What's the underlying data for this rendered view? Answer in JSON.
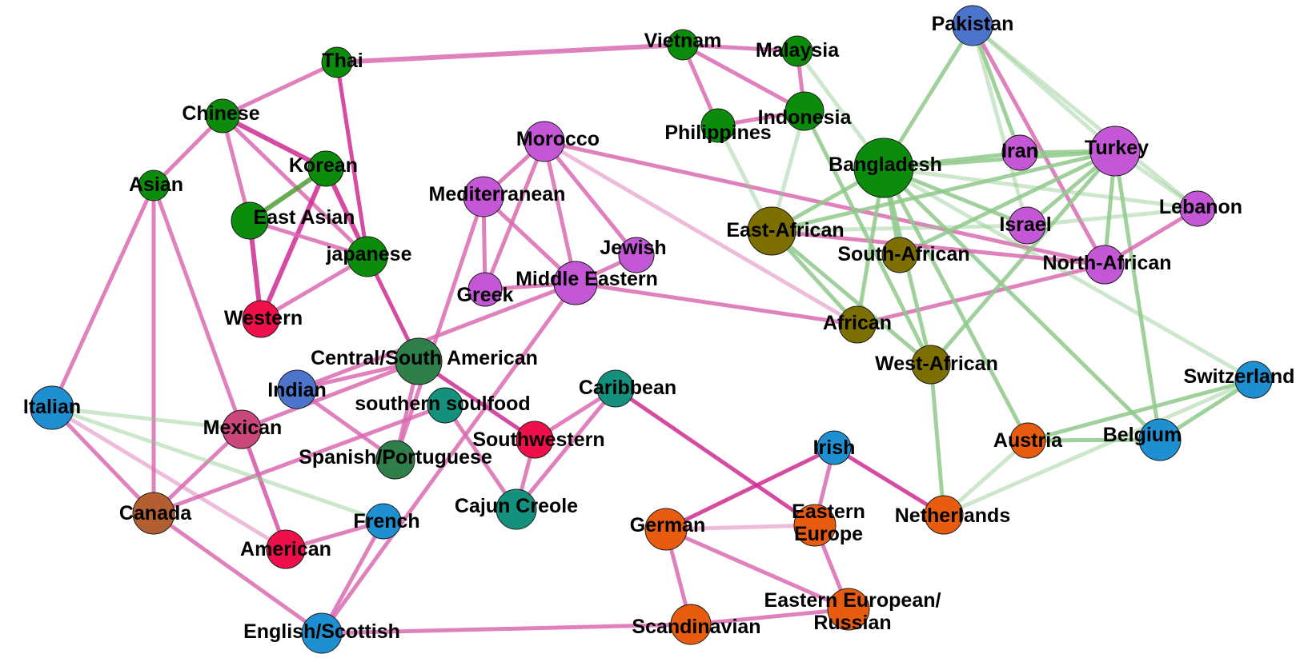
{
  "colors": {
    "pink_edge": "#d96bb0",
    "pink_strong": "#cc2b91",
    "green_edge": "#8fc98c",
    "green_strong": "#4f9e36",
    "east_asian_green": "#0b8c0b",
    "middle_eastern_purple": "#c357d6",
    "african_olive": "#7d7000",
    "latin_darkgreen": "#2e7f49",
    "caribbean_teal": "#14917d",
    "european_blue": "#1e8fd0",
    "northern_orange": "#e85c0f",
    "red": "#ef0f4a",
    "south_asian_blue": "#4d74cc",
    "canada_brown": "#b45f31",
    "mexican_rose": "#c9477b"
  },
  "nodes": [
    {
      "id": "vietnam",
      "label": "Vietnam",
      "group": "east_asian_green"
    },
    {
      "id": "malaysia",
      "label": "Malaysia",
      "group": "east_asian_green"
    },
    {
      "id": "thai",
      "label": "Thai",
      "group": "east_asian_green"
    },
    {
      "id": "chinese",
      "label": "Chinese",
      "group": "east_asian_green"
    },
    {
      "id": "indonesia",
      "label": "Indonesia",
      "group": "east_asian_green"
    },
    {
      "id": "philippines",
      "label": "Philippines",
      "group": "east_asian_green"
    },
    {
      "id": "korean",
      "label": "Korean",
      "group": "east_asian_green"
    },
    {
      "id": "asian",
      "label": "Asian",
      "group": "east_asian_green"
    },
    {
      "id": "east_asian",
      "label": "East Asian",
      "group": "east_asian_green"
    },
    {
      "id": "japanese",
      "label": "japanese",
      "group": "east_asian_green"
    },
    {
      "id": "bangladesh",
      "label": "Bangladesh",
      "group": "east_asian_green"
    },
    {
      "id": "pakistan",
      "label": "Pakistan",
      "group": "south_asian_blue"
    },
    {
      "id": "indian",
      "label": "Indian",
      "group": "south_asian_blue"
    },
    {
      "id": "morocco",
      "label": "Morocco",
      "group": "middle_eastern_purple"
    },
    {
      "id": "mediterranean",
      "label": "Mediterranean",
      "group": "middle_eastern_purple"
    },
    {
      "id": "jewish",
      "label": "Jewish",
      "group": "middle_eastern_purple"
    },
    {
      "id": "greek",
      "label": "Greek",
      "group": "middle_eastern_purple"
    },
    {
      "id": "middle_eastern",
      "label": "Middle Eastern",
      "group": "middle_eastern_purple"
    },
    {
      "id": "iran",
      "label": "Iran",
      "group": "middle_eastern_purple"
    },
    {
      "id": "turkey",
      "label": "Turkey",
      "group": "middle_eastern_purple"
    },
    {
      "id": "lebanon",
      "label": "Lebanon",
      "group": "middle_eastern_purple"
    },
    {
      "id": "israel",
      "label": "Israel",
      "group": "middle_eastern_purple"
    },
    {
      "id": "north_african",
      "label": "North-African",
      "group": "middle_eastern_purple"
    },
    {
      "id": "east_african",
      "label": "East-African",
      "group": "african_olive"
    },
    {
      "id": "south_african",
      "label": "South-African",
      "group": "african_olive"
    },
    {
      "id": "african",
      "label": "African",
      "group": "african_olive"
    },
    {
      "id": "west_african",
      "label": "West-African",
      "group": "african_olive"
    },
    {
      "id": "western",
      "label": "Western",
      "group": "red"
    },
    {
      "id": "southwestern",
      "label": "Southwestern",
      "group": "red"
    },
    {
      "id": "american",
      "label": "American",
      "group": "red"
    },
    {
      "id": "central_south_american",
      "label": "Central/South American",
      "group": "latin_darkgreen"
    },
    {
      "id": "spanish_portuguese",
      "label": "Spanish/Portuguese",
      "group": "latin_darkgreen"
    },
    {
      "id": "southern_soulfood",
      "label": "southern soulfood",
      "group": "caribbean_teal"
    },
    {
      "id": "caribbean",
      "label": "Caribbean",
      "group": "caribbean_teal"
    },
    {
      "id": "cajun_creole",
      "label": "Cajun Creole",
      "group": "caribbean_teal"
    },
    {
      "id": "mexican",
      "label": "Mexican",
      "group": "mexican_rose"
    },
    {
      "id": "canada",
      "label": "Canada",
      "group": "canada_brown"
    },
    {
      "id": "italian",
      "label": "Italian",
      "group": "european_blue"
    },
    {
      "id": "french",
      "label": "French",
      "group": "european_blue"
    },
    {
      "id": "english_scottish",
      "label": "English/Scottish",
      "group": "european_blue"
    },
    {
      "id": "irish",
      "label": "Irish",
      "group": "european_blue"
    },
    {
      "id": "switzerland",
      "label": "Switzerland",
      "group": "european_blue"
    },
    {
      "id": "belgium",
      "label": "Belgium",
      "group": "european_blue"
    },
    {
      "id": "austria",
      "label": "Austria",
      "group": "northern_orange"
    },
    {
      "id": "netherlands",
      "label": "Netherlands",
      "group": "northern_orange"
    },
    {
      "id": "german",
      "label": "German",
      "group": "northern_orange"
    },
    {
      "id": "eastern_europe",
      "label": "Eastern\nEurope",
      "group": "northern_orange"
    },
    {
      "id": "scandinavian",
      "label": "Scandinavian",
      "group": "northern_orange"
    },
    {
      "id": "eastern_european_russian",
      "label": "Eastern European/\nRussian",
      "group": "northern_orange"
    }
  ],
  "edges": [
    {
      "source": "thai",
      "target": "vietnam",
      "color": "pink_edge",
      "weight": 3
    },
    {
      "source": "vietnam",
      "target": "malaysia",
      "color": "pink_edge",
      "weight": 2
    },
    {
      "source": "vietnam",
      "target": "philippines",
      "color": "pink_edge",
      "weight": 2
    },
    {
      "source": "vietnam",
      "target": "indonesia",
      "color": "pink_edge",
      "weight": 2
    },
    {
      "source": "malaysia",
      "target": "indonesia",
      "color": "pink_edge",
      "weight": 2
    },
    {
      "source": "philippines",
      "target": "indonesia",
      "color": "pink_edge",
      "weight": 2
    },
    {
      "source": "thai",
      "target": "chinese",
      "color": "pink_edge",
      "weight": 2
    },
    {
      "source": "thai",
      "target": "japanese",
      "color": "pink_strong",
      "weight": 2
    },
    {
      "source": "chinese",
      "target": "asian",
      "color": "pink_edge",
      "weight": 2
    },
    {
      "source": "chinese",
      "target": "korean",
      "color": "pink_strong",
      "weight": 3
    },
    {
      "source": "chinese",
      "target": "japanese",
      "color": "pink_edge",
      "weight": 2
    },
    {
      "source": "chinese",
      "target": "east_asian",
      "color": "pink_edge",
      "weight": 2
    },
    {
      "source": "korean",
      "target": "japanese",
      "color": "pink_strong",
      "weight": 3
    },
    {
      "source": "korean",
      "target": "east_asian",
      "color": "green_strong",
      "weight": 3
    },
    {
      "source": "korean",
      "target": "western",
      "color": "pink_strong",
      "weight": 3
    },
    {
      "source": "east_asian",
      "target": "japanese",
      "color": "pink_edge",
      "weight": 2
    },
    {
      "source": "east_asian",
      "target": "western",
      "color": "pink_strong",
      "weight": 3
    },
    {
      "source": "japanese",
      "target": "western",
      "color": "pink_edge",
      "weight": 2
    },
    {
      "source": "japanese",
      "target": "central_south_american",
      "color": "pink_strong",
      "weight": 2
    },
    {
      "source": "asian",
      "target": "italian",
      "color": "pink_edge",
      "weight": 2
    },
    {
      "source": "asian",
      "target": "canada",
      "color": "pink_edge",
      "weight": 2
    },
    {
      "source": "asian",
      "target": "american",
      "color": "pink_edge",
      "weight": 2
    },
    {
      "source": "morocco",
      "target": "mediterranean",
      "color": "pink_edge",
      "weight": 2
    },
    {
      "source": "morocco",
      "target": "greek",
      "color": "pink_edge",
      "weight": 2
    },
    {
      "source": "morocco",
      "target": "jewish",
      "color": "pink_edge",
      "weight": 2
    },
    {
      "source": "morocco",
      "target": "middle_eastern",
      "color": "pink_edge",
      "weight": 2
    },
    {
      "source": "morocco",
      "target": "north_african",
      "color": "pink_edge",
      "weight": 2
    },
    {
      "source": "morocco",
      "target": "african",
      "color": "pink_edge",
      "weight": 1
    },
    {
      "source": "mediterranean",
      "target": "greek",
      "color": "pink_edge",
      "weight": 2
    },
    {
      "source": "mediterranean",
      "target": "middle_eastern",
      "color": "pink_edge",
      "weight": 2
    },
    {
      "source": "mediterranean",
      "target": "spanish_portuguese",
      "color": "pink_edge",
      "weight": 2
    },
    {
      "source": "middle_eastern",
      "target": "greek",
      "color": "pink_edge",
      "weight": 2
    },
    {
      "source": "middle_eastern",
      "target": "jewish",
      "color": "pink_edge",
      "weight": 2
    },
    {
      "source": "middle_eastern",
      "target": "african",
      "color": "pink_edge",
      "weight": 2
    },
    {
      "source": "middle_eastern",
      "target": "indian",
      "color": "pink_edge",
      "weight": 2
    },
    {
      "source": "middle_eastern",
      "target": "english_scottish",
      "color": "pink_edge",
      "weight": 2
    },
    {
      "source": "african",
      "target": "north_african",
      "color": "pink_edge",
      "weight": 2
    },
    {
      "source": "central_south_american",
      "target": "indian",
      "color": "pink_edge",
      "weight": 2
    },
    {
      "source": "central_south_american",
      "target": "southwestern",
      "color": "pink_strong",
      "weight": 2
    },
    {
      "source": "central_south_american",
      "target": "spanish_portuguese",
      "color": "pink_edge",
      "weight": 2
    },
    {
      "source": "central_south_american",
      "target": "mexican",
      "color": "pink_edge",
      "weight": 2
    },
    {
      "source": "indian",
      "target": "spanish_portuguese",
      "color": "pink_edge",
      "weight": 2
    },
    {
      "source": "southern_soulfood",
      "target": "cajun_creole",
      "color": "pink_edge",
      "weight": 2
    },
    {
      "source": "southern_soulfood",
      "target": "canada",
      "color": "pink_edge",
      "weight": 2
    },
    {
      "source": "caribbean",
      "target": "southwestern",
      "color": "pink_edge",
      "weight": 2
    },
    {
      "source": "caribbean",
      "target": "cajun_creole",
      "color": "pink_edge",
      "weight": 2
    },
    {
      "source": "caribbean",
      "target": "eastern_europe",
      "color": "pink_strong",
      "weight": 2
    },
    {
      "source": "southwestern",
      "target": "cajun_creole",
      "color": "pink_edge",
      "weight": 2
    },
    {
      "source": "mexican",
      "target": "canada",
      "color": "pink_edge",
      "weight": 2
    },
    {
      "source": "mexican",
      "target": "american",
      "color": "pink_edge",
      "weight": 2
    },
    {
      "source": "italian",
      "target": "canada",
      "color": "pink_edge",
      "weight": 2
    },
    {
      "source": "italian",
      "target": "american",
      "color": "pink_edge",
      "weight": 1
    },
    {
      "source": "italian",
      "target": "french",
      "color": "green_edge",
      "weight": 1
    },
    {
      "source": "italian",
      "target": "mexican",
      "color": "green_edge",
      "weight": 1
    },
    {
      "source": "canada",
      "target": "english_scottish",
      "color": "pink_edge",
      "weight": 2
    },
    {
      "source": "american",
      "target": "french",
      "color": "pink_edge",
      "weight": 2
    },
    {
      "source": "french",
      "target": "english_scottish",
      "color": "pink_edge",
      "weight": 2
    },
    {
      "source": "english_scottish",
      "target": "scandinavian",
      "color": "pink_edge",
      "weight": 2
    },
    {
      "source": "irish",
      "target": "german",
      "color": "pink_strong",
      "weight": 2
    },
    {
      "source": "irish",
      "target": "eastern_europe",
      "color": "pink_edge",
      "weight": 2
    },
    {
      "source": "irish",
      "target": "netherlands",
      "color": "pink_strong",
      "weight": 2
    },
    {
      "source": "german",
      "target": "eastern_europe",
      "color": "pink_edge",
      "weight": 1
    },
    {
      "source": "german",
      "target": "scandinavian",
      "color": "pink_edge",
      "weight": 2
    },
    {
      "source": "german",
      "target": "eastern_european_russian",
      "color": "pink_edge",
      "weight": 2
    },
    {
      "source": "eastern_europe",
      "target": "eastern_european_russian",
      "color": "pink_edge",
      "weight": 2
    },
    {
      "source": "scandinavian",
      "target": "eastern_european_russian",
      "color": "pink_edge",
      "weight": 2
    },
    {
      "source": "pakistan",
      "target": "bangladesh",
      "color": "green_edge",
      "weight": 2
    },
    {
      "source": "pakistan",
      "target": "iran",
      "color": "green_edge",
      "weight": 2
    },
    {
      "source": "pakistan",
      "target": "turkey",
      "color": "green_edge",
      "weight": 1
    },
    {
      "source": "pakistan",
      "target": "north_african",
      "color": "pink_edge",
      "weight": 2
    },
    {
      "source": "pakistan",
      "target": "israel",
      "color": "green_edge",
      "weight": 1
    },
    {
      "source": "pakistan",
      "target": "lebanon",
      "color": "green_edge",
      "weight": 1
    },
    {
      "source": "bangladesh",
      "target": "iran",
      "color": "green_edge",
      "weight": 2
    },
    {
      "source": "bangladesh",
      "target": "turkey",
      "color": "green_edge",
      "weight": 2
    },
    {
      "source": "bangladesh",
      "target": "east_african",
      "color": "green_edge",
      "weight": 2
    },
    {
      "source": "bangladesh",
      "target": "south_african",
      "color": "green_edge",
      "weight": 2
    },
    {
      "source": "bangladesh",
      "target": "west_african",
      "color": "green_edge",
      "weight": 2
    },
    {
      "source": "bangladesh",
      "target": "israel",
      "color": "green_edge",
      "weight": 2
    },
    {
      "source": "bangladesh",
      "target": "austria",
      "color": "green_edge",
      "weight": 2
    },
    {
      "source": "bangladesh",
      "target": "belgium",
      "color": "green_edge",
      "weight": 2
    },
    {
      "source": "bangladesh",
      "target": "switzerland",
      "color": "green_edge",
      "weight": 1
    },
    {
      "source": "bangladesh",
      "target": "lebanon",
      "color": "green_edge",
      "weight": 1
    },
    {
      "source": "bangladesh",
      "target": "african",
      "color": "green_edge",
      "weight": 2
    },
    {
      "source": "turkey",
      "target": "iran",
      "color": "green_edge",
      "weight": 2
    },
    {
      "source": "turkey",
      "target": "israel",
      "color": "green_edge",
      "weight": 2
    },
    {
      "source": "turkey",
      "target": "east_african",
      "color": "green_edge",
      "weight": 2
    },
    {
      "source": "turkey",
      "target": "south_african",
      "color": "green_edge",
      "weight": 2
    },
    {
      "source": "turkey",
      "target": "west_african",
      "color": "green_edge",
      "weight": 2
    },
    {
      "source": "turkey",
      "target": "north_african",
      "color": "green_edge",
      "weight": 2
    },
    {
      "source": "turkey",
      "target": "lebanon",
      "color": "green_edge",
      "weight": 1
    },
    {
      "source": "turkey",
      "target": "belgium",
      "color": "green_edge",
      "weight": 2
    },
    {
      "source": "east_african",
      "target": "israel",
      "color": "green_edge",
      "weight": 1
    },
    {
      "source": "east_african",
      "target": "north_african",
      "color": "pink_edge",
      "weight": 2
    },
    {
      "source": "east_african",
      "target": "african",
      "color": "green_edge",
      "weight": 2
    },
    {
      "source": "east_african",
      "target": "west_african",
      "color": "green_edge",
      "weight": 2
    },
    {
      "source": "east_african",
      "target": "indonesia",
      "color": "green_edge",
      "weight": 1
    },
    {
      "source": "east_african",
      "target": "philippines",
      "color": "green_edge",
      "weight": 1
    },
    {
      "source": "indonesia",
      "target": "west_african",
      "color": "green_edge",
      "weight": 2
    },
    {
      "source": "malaysia",
      "target": "bangladesh",
      "color": "green_edge",
      "weight": 1
    },
    {
      "source": "israel",
      "target": "lebanon",
      "color": "green_edge",
      "weight": 1
    },
    {
      "source": "north_african",
      "target": "lebanon",
      "color": "pink_edge",
      "weight": 2
    },
    {
      "source": "west_african",
      "target": "netherlands",
      "color": "green_edge",
      "weight": 2
    },
    {
      "source": "austria",
      "target": "belgium",
      "color": "green_edge",
      "weight": 2
    },
    {
      "source": "austria",
      "target": "switzerland",
      "color": "green_edge",
      "weight": 2
    },
    {
      "source": "belgium",
      "target": "switzerland",
      "color": "green_edge",
      "weight": 2
    },
    {
      "source": "netherlands",
      "target": "switzerland",
      "color": "green_edge",
      "weight": 1
    },
    {
      "source": "netherlands",
      "target": "austria",
      "color": "green_edge",
      "weight": 1
    }
  ]
}
